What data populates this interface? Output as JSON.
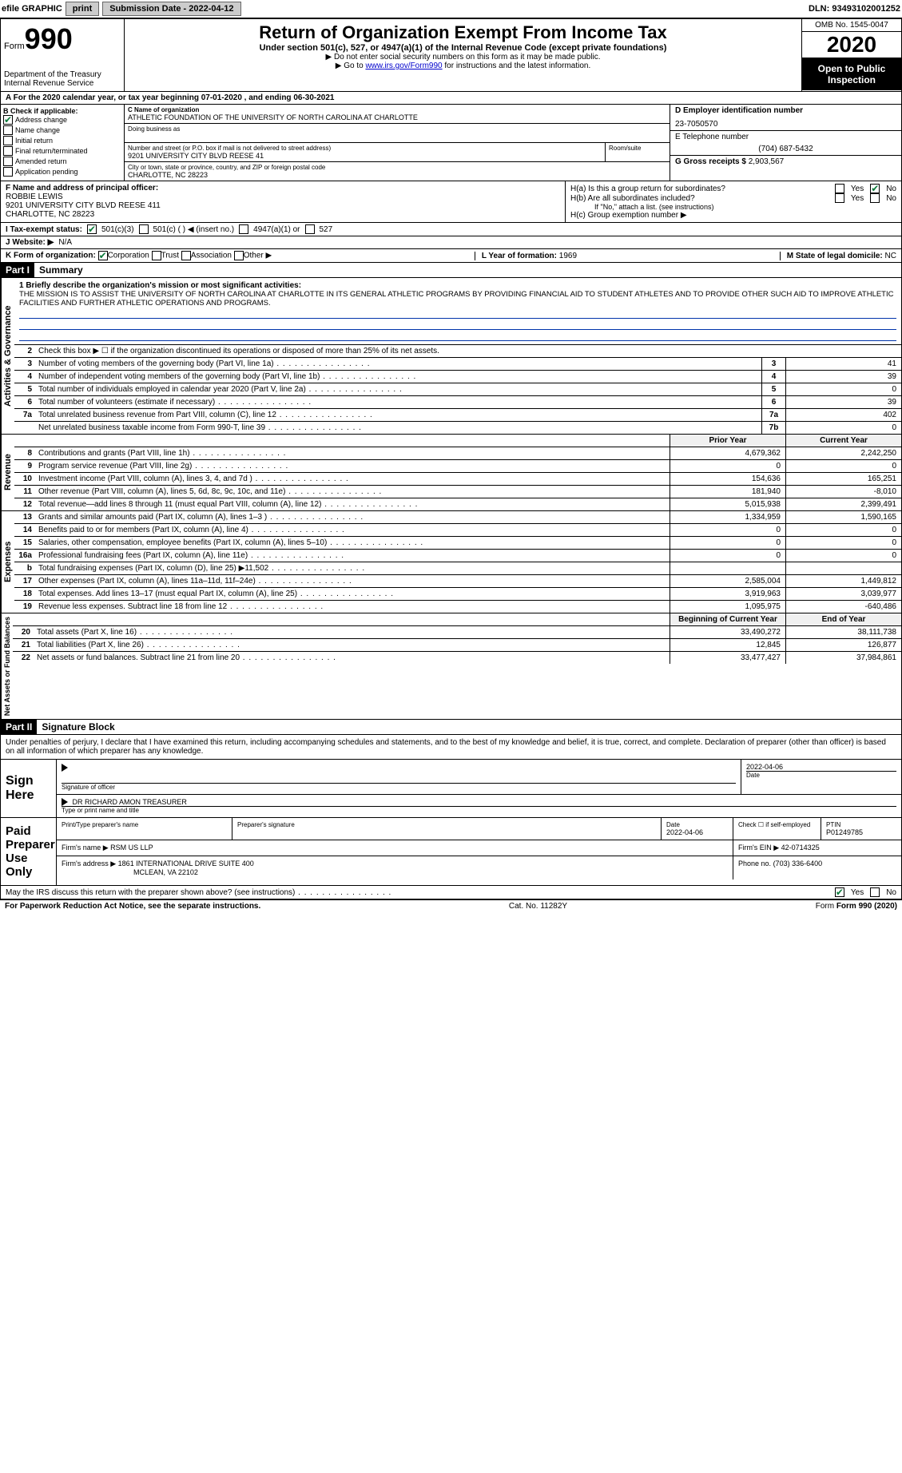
{
  "topbar": {
    "efile_label": "efile GRAPHIC",
    "print_btn": "print",
    "submission_label": "Submission Date - 2022-04-12",
    "dln": "DLN: 93493102001252"
  },
  "header": {
    "form_label": "Form",
    "form_number": "990",
    "dept": "Department of the Treasury",
    "irs": "Internal Revenue Service",
    "title": "Return of Organization Exempt From Income Tax",
    "subtitle": "Under section 501(c), 527, or 4947(a)(1) of the Internal Revenue Code (except private foundations)",
    "note1": "▶ Do not enter social security numbers on this form as it may be made public.",
    "note2_prefix": "▶ Go to ",
    "note2_link": "www.irs.gov/Form990",
    "note2_suffix": " for instructions and the latest information.",
    "omb": "OMB No. 1545-0047",
    "year": "2020",
    "open_public": "Open to Public Inspection"
  },
  "rowA": "A For the 2020 calendar year, or tax year beginning 07-01-2020    , and ending 06-30-2021",
  "boxB": {
    "label": "B Check if applicable:",
    "items": {
      "address_change": "Address change",
      "name_change": "Name change",
      "initial_return": "Initial return",
      "final_return": "Final return/terminated",
      "amended_return": "Amended return",
      "application_pending": "Application pending"
    }
  },
  "boxC": {
    "label": "C Name of organization",
    "name": "ATHLETIC FOUNDATION OF THE UNIVERSITY OF NORTH CAROLINA AT CHARLOTTE",
    "dba_label": "Doing business as",
    "addr_label": "Number and street (or P.O. box if mail is not delivered to street address)",
    "room_label": "Room/suite",
    "addr": "9201 UNIVERSITY CITY BLVD REESE 41",
    "city_label": "City or town, state or province, country, and ZIP or foreign postal code",
    "city": "CHARLOTTE, NC  28223"
  },
  "boxD": {
    "label": "D Employer identification number",
    "value": "23-7050570"
  },
  "boxE": {
    "label": "E Telephone number",
    "value": "(704) 687-5432"
  },
  "boxG": {
    "label": "G Gross receipts $",
    "value": "2,903,567"
  },
  "boxF": {
    "label": "F  Name and address of principal officer:",
    "name": "ROBBIE LEWIS",
    "addr1": "9201 UNIVERSITY CITY BLVD REESE 411",
    "addr2": "CHARLOTTE, NC  28223"
  },
  "boxH": {
    "ha_label": "H(a)  Is this a group return for subordinates?",
    "hb_label": "H(b)  Are all subordinates included?",
    "hb_note": "If \"No,\" attach a list. (see instructions)",
    "hc_label": "H(c)  Group exemption number ▶",
    "yes": "Yes",
    "no": "No"
  },
  "boxI": {
    "label": "I  Tax-exempt status:",
    "opt1": "501(c)(3)",
    "opt2": "501(c) (   ) ◀ (insert no.)",
    "opt3": "4947(a)(1) or",
    "opt4": "527"
  },
  "boxJ": {
    "label": "J  Website: ▶",
    "value": "N/A"
  },
  "boxK": {
    "label": "K Form of organization:",
    "opt1": "Corporation",
    "opt2": "Trust",
    "opt3": "Association",
    "opt4": "Other ▶"
  },
  "boxL": {
    "label": "L Year of formation:",
    "value": "1969"
  },
  "boxM": {
    "label": "M State of legal domicile:",
    "value": "NC"
  },
  "part1": {
    "header": "Part I",
    "title": "Summary",
    "side_gov": "Activities & Governance",
    "side_rev": "Revenue",
    "side_exp": "Expenses",
    "side_net": "Net Assets or Fund Balances",
    "q1_label": "1  Briefly describe the organization's mission or most significant activities:",
    "q1_text": "THE MISSION IS TO ASSIST THE UNIVERSITY OF NORTH CAROLINA AT CHARLOTTE IN ITS GENERAL ATHLETIC PROGRAMS BY PROVIDING FINANCIAL AID TO STUDENT ATHLETES AND TO PROVIDE OTHER SUCH AID TO IMPROVE ATHLETIC FACILITIES AND FURTHER ATHLETIC OPERATIONS AND PROGRAMS.",
    "q2": "Check this box ▶ ☐ if the organization discontinued its operations or disposed of more than 25% of its net assets.",
    "rows_gov": [
      {
        "n": "3",
        "d": "Number of voting members of the governing body (Part VI, line 1a)",
        "k": "3",
        "v": "41"
      },
      {
        "n": "4",
        "d": "Number of independent voting members of the governing body (Part VI, line 1b)",
        "k": "4",
        "v": "39"
      },
      {
        "n": "5",
        "d": "Total number of individuals employed in calendar year 2020 (Part V, line 2a)",
        "k": "5",
        "v": "0"
      },
      {
        "n": "6",
        "d": "Total number of volunteers (estimate if necessary)",
        "k": "6",
        "v": "39"
      },
      {
        "n": "7a",
        "d": "Total unrelated business revenue from Part VIII, column (C), line 12",
        "k": "7a",
        "v": "402"
      },
      {
        "n": "",
        "d": "Net unrelated business taxable income from Form 990-T, line 39",
        "k": "7b",
        "v": "0"
      }
    ],
    "col_headers": {
      "prior": "Prior Year",
      "curr": "Current Year"
    },
    "rows_rev": [
      {
        "n": "8",
        "d": "Contributions and grants (Part VIII, line 1h)",
        "p": "4,679,362",
        "c": "2,242,250"
      },
      {
        "n": "9",
        "d": "Program service revenue (Part VIII, line 2g)",
        "p": "0",
        "c": "0"
      },
      {
        "n": "10",
        "d": "Investment income (Part VIII, column (A), lines 3, 4, and 7d )",
        "p": "154,636",
        "c": "165,251"
      },
      {
        "n": "11",
        "d": "Other revenue (Part VIII, column (A), lines 5, 6d, 8c, 9c, 10c, and 11e)",
        "p": "181,940",
        "c": "-8,010"
      },
      {
        "n": "12",
        "d": "Total revenue—add lines 8 through 11 (must equal Part VIII, column (A), line 12)",
        "p": "5,015,938",
        "c": "2,399,491"
      }
    ],
    "rows_exp": [
      {
        "n": "13",
        "d": "Grants and similar amounts paid (Part IX, column (A), lines 1–3 )",
        "p": "1,334,959",
        "c": "1,590,165"
      },
      {
        "n": "14",
        "d": "Benefits paid to or for members (Part IX, column (A), line 4)",
        "p": "0",
        "c": "0"
      },
      {
        "n": "15",
        "d": "Salaries, other compensation, employee benefits (Part IX, column (A), lines 5–10)",
        "p": "0",
        "c": "0"
      },
      {
        "n": "16a",
        "d": "Professional fundraising fees (Part IX, column (A), line 11e)",
        "p": "0",
        "c": "0"
      },
      {
        "n": "b",
        "d": "Total fundraising expenses (Part IX, column (D), line 25) ▶11,502",
        "p": "",
        "c": ""
      },
      {
        "n": "17",
        "d": "Other expenses (Part IX, column (A), lines 11a–11d, 11f–24e)",
        "p": "2,585,004",
        "c": "1,449,812"
      },
      {
        "n": "18",
        "d": "Total expenses. Add lines 13–17 (must equal Part IX, column (A), line 25)",
        "p": "3,919,963",
        "c": "3,039,977"
      },
      {
        "n": "19",
        "d": "Revenue less expenses. Subtract line 18 from line 12",
        "p": "1,095,975",
        "c": "-640,486"
      }
    ],
    "col_headers2": {
      "begin": "Beginning of Current Year",
      "end": "End of Year"
    },
    "rows_net": [
      {
        "n": "20",
        "d": "Total assets (Part X, line 16)",
        "p": "33,490,272",
        "c": "38,111,738"
      },
      {
        "n": "21",
        "d": "Total liabilities (Part X, line 26)",
        "p": "12,845",
        "c": "126,877"
      },
      {
        "n": "22",
        "d": "Net assets or fund balances. Subtract line 21 from line 20",
        "p": "33,477,427",
        "c": "37,984,861"
      }
    ]
  },
  "part2": {
    "header": "Part II",
    "title": "Signature Block",
    "penalty": "Under penalties of perjury, I declare that I have examined this return, including accompanying schedules and statements, and to the best of my knowledge and belief, it is true, correct, and complete. Declaration of preparer (other than officer) is based on all information of which preparer has any knowledge.",
    "sign_label": "Sign Here",
    "sig_officer": "Signature of officer",
    "date_label": "Date",
    "sig_date": "2022-04-06",
    "officer_name": "DR RICHARD AMON  TREASURER",
    "type_name_label": "Type or print name and title",
    "paid_label": "Paid Preparer Use Only",
    "prep_name_label": "Print/Type preparer's name",
    "prep_sig_label": "Preparer's signature",
    "prep_date": "2022-04-06",
    "check_self": "Check ☐ if self-employed",
    "ptin_label": "PTIN",
    "ptin": "P01249785",
    "firm_name_label": "Firm's name   ▶",
    "firm_name": "RSM US LLP",
    "firm_ein_label": "Firm's EIN ▶",
    "firm_ein": "42-0714325",
    "firm_addr_label": "Firm's address ▶",
    "firm_addr1": "1861 INTERNATIONAL DRIVE SUITE 400",
    "firm_addr2": "MCLEAN, VA  22102",
    "phone_label": "Phone no.",
    "phone": "(703) 336-6400",
    "discuss": "May the IRS discuss this return with the preparer shown above? (see instructions)",
    "yes": "Yes",
    "no": "No"
  },
  "footer": {
    "paperwork": "For Paperwork Reduction Act Notice, see the separate instructions.",
    "cat": "Cat. No. 11282Y",
    "form": "Form 990 (2020)"
  }
}
